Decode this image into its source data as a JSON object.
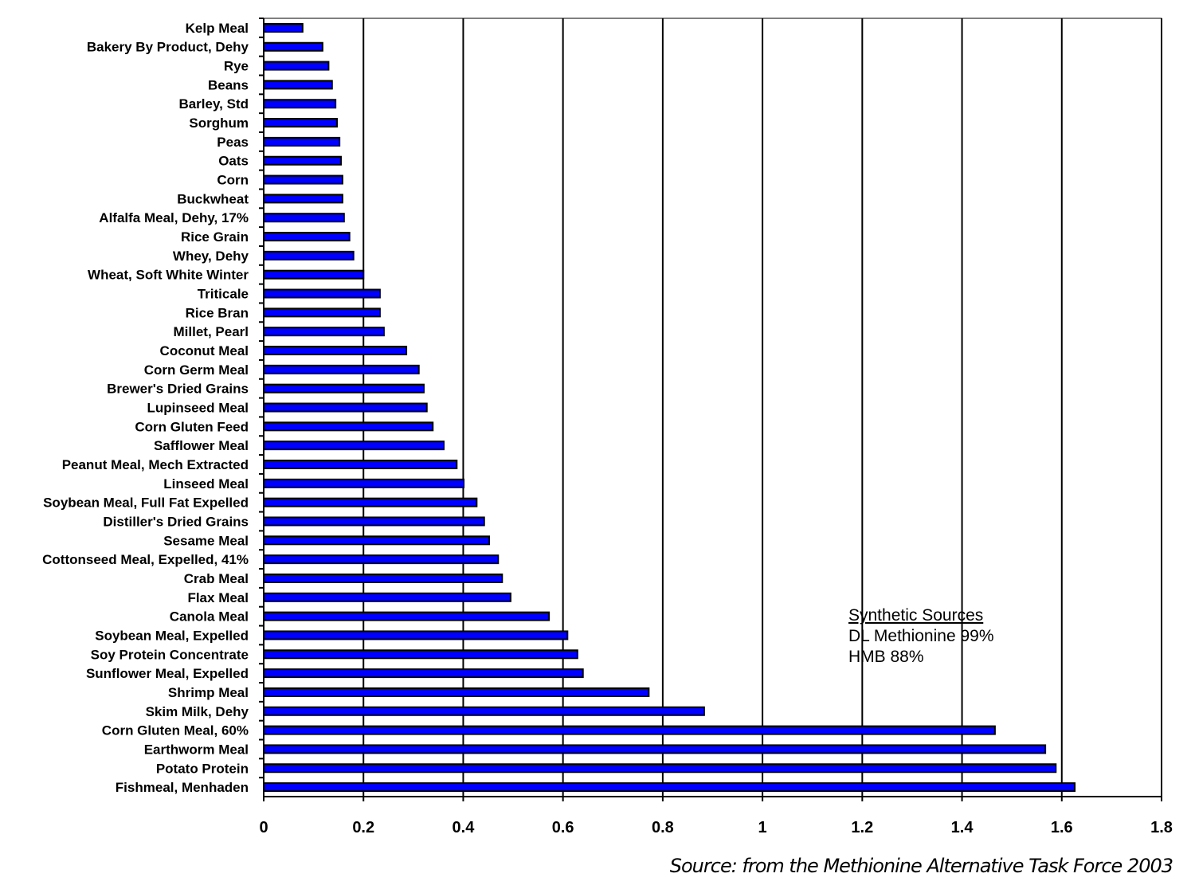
{
  "chart_data": {
    "type": "bar",
    "orientation": "horizontal",
    "categories": [
      "Kelp Meal",
      "Bakery By Product, Dehy",
      "Rye",
      "Beans",
      "Barley, Std",
      "Sorghum",
      "Peas",
      "Oats",
      "Corn",
      "Buckwheat",
      "Alfalfa Meal, Dehy, 17%",
      "Rice Grain",
      "Whey, Dehy",
      "Wheat, Soft White Winter",
      "Triticale",
      "Rice Bran",
      "Millet, Pearl",
      "Coconut Meal",
      "Corn Germ Meal",
      "Brewer's Dried Grains",
      "Lupinseed Meal",
      "Corn Gluten Feed",
      "Safflower Meal",
      "Peanut Meal, Mech Extracted",
      "Linseed Meal",
      "Soybean Meal, Full Fat Expelled",
      "Distiller's Dried Grains",
      "Sesame Meal",
      "Cottonseed Meal, Expelled, 41%",
      "Crab Meal",
      "Flax Meal",
      "Canola Meal",
      "Soybean Meal, Expelled",
      "Soy Protein Concentrate",
      "Sunflower Meal, Expelled",
      "Shrimp Meal",
      "Skim Milk, Dehy",
      "Corn Gluten Meal, 60%",
      "Earthworm Meal",
      "Potato Protein",
      "Fishmeal, Menhaden"
    ],
    "values": [
      0.078,
      0.118,
      0.13,
      0.137,
      0.144,
      0.147,
      0.152,
      0.155,
      0.158,
      0.158,
      0.161,
      0.172,
      0.18,
      0.2,
      0.233,
      0.233,
      0.241,
      0.286,
      0.311,
      0.321,
      0.327,
      0.339,
      0.361,
      0.387,
      0.401,
      0.427,
      0.442,
      0.452,
      0.47,
      0.478,
      0.495,
      0.572,
      0.609,
      0.629,
      0.64,
      0.772,
      0.883,
      1.466,
      1.567,
      1.588,
      1.626
    ],
    "xlim": [
      0,
      1.8
    ],
    "xticks": [
      "0",
      "0.2",
      "0.4",
      "0.6",
      "0.8",
      "1",
      "1.2",
      "1.4",
      "1.6",
      "1.8"
    ],
    "grid": "vertical",
    "bar_color": "#0000FF",
    "annotation": {
      "title": "Synthetic  Sources",
      "lines": [
        "DL Methionine 99%",
        "HMB 88%"
      ]
    },
    "source": "Source: from the Methionine Alternative Task Force 2003"
  }
}
